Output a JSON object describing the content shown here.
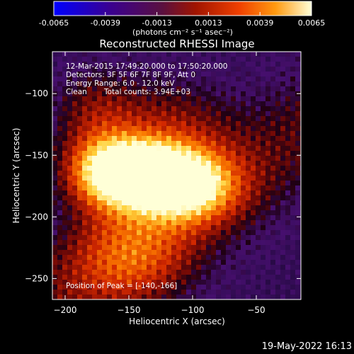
{
  "chart_data": {
    "type": "heatmap",
    "title": "Reconstructed RHESSI Image",
    "xlabel": "Heliocentric X (arcsec)",
    "ylabel": "Heliocentric Y (arcsec)",
    "xlim": [
      -210,
      -15
    ],
    "ylim": [
      -267,
      -66
    ],
    "xticks": [
      -200,
      -150,
      -100,
      -50
    ],
    "yticks": [
      -100,
      -150,
      -200,
      -250
    ],
    "colorbar": {
      "min": -0.0065,
      "max": 0.0065,
      "ticks": [
        "-0.0065",
        "-0.0039",
        "-0.0013",
        "0.0013",
        "0.0039",
        "0.0065"
      ],
      "unit_label": "(photons cm⁻² s⁻¹ asec⁻²)",
      "colors": [
        "#0000ff",
        "#4b0080",
        "#7a1010",
        "#e03000",
        "#ff8a00",
        "#ffffe0"
      ]
    },
    "peak": {
      "x": -140,
      "y": -166
    },
    "annotations": {
      "time": "12-Mar-2015 17:49:20.000 to 17:50:20.000",
      "detectors": "Detectors: 3F 5F 6F 7F 8F 9F, Att 0",
      "energy": "Energy Range: 6.0 - 12.0 keV",
      "method": "Clean",
      "counts": "Total counts: 3.94E+03",
      "peak_text": "Position of Peak = [-140,-166]"
    },
    "footer_date": "19-May-2022 16:13"
  }
}
